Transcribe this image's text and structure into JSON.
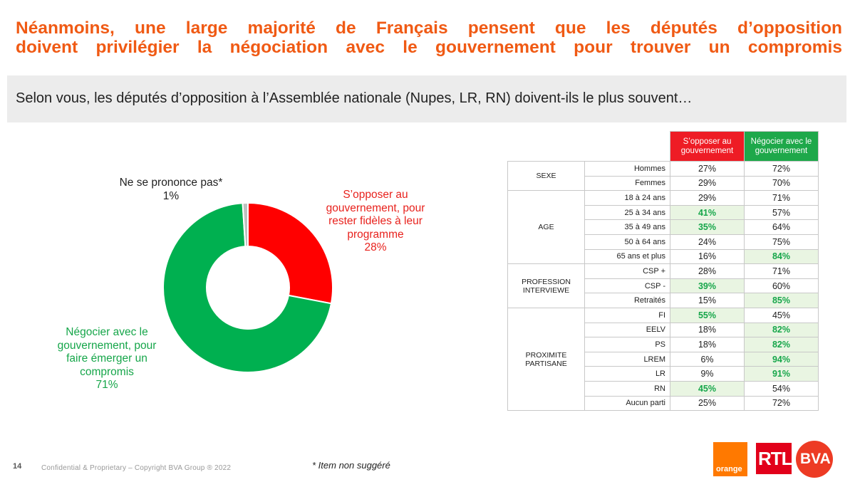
{
  "title_line1": "Néanmoins, une large majorité de Français pensent que les députés d’opposition",
  "title_line2": "doivent privilégier la négociation avec le gouvernement pour trouver un compromis",
  "question": "Selon vous, les députés d’opposition à l’Assemblée nationale (Nupes, LR, RN) doivent-ils le plus souvent…",
  "colors": {
    "title": "#f05a14",
    "oppose": "#ff0000",
    "negocier": "#00b050",
    "nsp": "#bfbfbf",
    "highlight_bg": "#e9f5e2"
  },
  "chart_data": {
    "type": "pie",
    "donut": true,
    "slices": [
      {
        "label_lines": [
          "S’opposer au",
          "gouvernement, pour",
          "rester fidèles à leur",
          "programme"
        ],
        "value": 28,
        "value_label": "28%",
        "color": "#ff0000"
      },
      {
        "label_lines": [
          "Négocier avec le",
          "gouvernement, pour",
          "faire émerger un",
          "compromis"
        ],
        "value": 71,
        "value_label": "71%",
        "color": "#00b050"
      },
      {
        "label_lines": [
          "Ne se prononce pas*"
        ],
        "value": 1,
        "value_label": "1%",
        "color": "#bfbfbf"
      }
    ]
  },
  "table": {
    "col_oppose": "S’opposer au gouvernement",
    "col_negocier": "Négocier avec le gouvernement",
    "groups": [
      {
        "name": "SEXE",
        "rows": [
          {
            "label": "Hommes",
            "oppose": "27%",
            "negocier": "72%",
            "hl": ""
          },
          {
            "label": "Femmes",
            "oppose": "29%",
            "negocier": "70%",
            "hl": ""
          }
        ]
      },
      {
        "name": "AGE",
        "rows": [
          {
            "label": "18 à 24 ans",
            "oppose": "29%",
            "negocier": "71%",
            "hl": ""
          },
          {
            "label": "25 à 34 ans",
            "oppose": "41%",
            "negocier": "57%",
            "hl": "oppose"
          },
          {
            "label": "35 à 49 ans",
            "oppose": "35%",
            "negocier": "64%",
            "hl": "oppose"
          },
          {
            "label": "50 à 64 ans",
            "oppose": "24%",
            "negocier": "75%",
            "hl": ""
          },
          {
            "label": "65 ans et plus",
            "oppose": "16%",
            "negocier": "84%",
            "hl": "negocier"
          }
        ]
      },
      {
        "name": "PROFESSION INTERVIEWE",
        "rows": [
          {
            "label": "CSP +",
            "oppose": "28%",
            "negocier": "71%",
            "hl": ""
          },
          {
            "label": "CSP -",
            "oppose": "39%",
            "negocier": "60%",
            "hl": "oppose"
          },
          {
            "label": "Retraités",
            "oppose": "15%",
            "negocier": "85%",
            "hl": "negocier"
          }
        ]
      },
      {
        "name": "PROXIMITE PARTISANE",
        "rows": [
          {
            "label": "FI",
            "oppose": "55%",
            "negocier": "45%",
            "hl": "oppose"
          },
          {
            "label": "EELV",
            "oppose": "18%",
            "negocier": "82%",
            "hl": "negocier"
          },
          {
            "label": "PS",
            "oppose": "18%",
            "negocier": "82%",
            "hl": "negocier"
          },
          {
            "label": "LREM",
            "oppose": "6%",
            "negocier": "94%",
            "hl": "negocier"
          },
          {
            "label": "LR",
            "oppose": "9%",
            "negocier": "91%",
            "hl": "negocier"
          },
          {
            "label": "RN",
            "oppose": "45%",
            "negocier": "54%",
            "hl": "oppose"
          },
          {
            "label": "Aucun parti",
            "oppose": "25%",
            "negocier": "72%",
            "hl": ""
          }
        ]
      }
    ]
  },
  "footer": {
    "page_number": "14",
    "copyright": "Confidential & Proprietary – Copyright BVA Group ® 2022",
    "footnote": "* Item non suggéré"
  },
  "logos": {
    "orange": "orange",
    "rtl": "RTL",
    "bva": "BVA"
  }
}
